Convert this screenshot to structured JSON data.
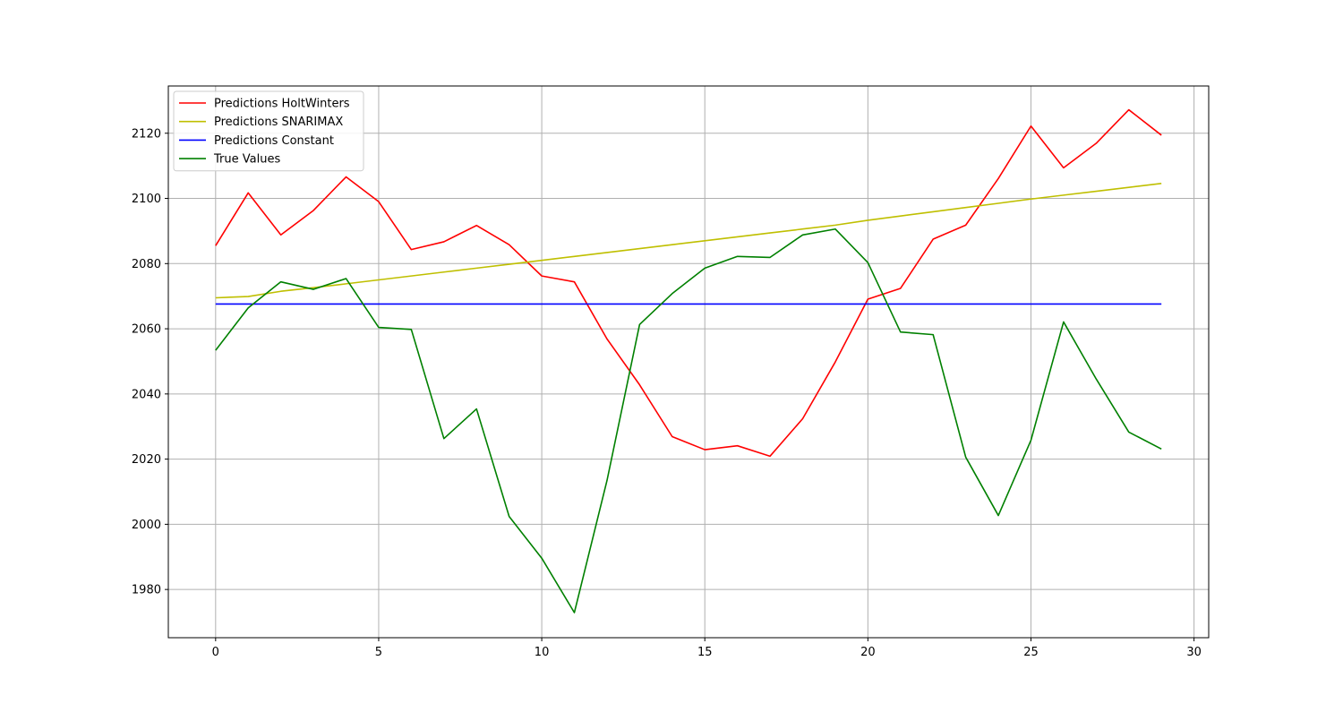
{
  "chart_data": {
    "type": "line",
    "title": "",
    "xlabel": "",
    "ylabel": "",
    "x": [
      0,
      1,
      2,
      3,
      4,
      5,
      6,
      7,
      8,
      9,
      10,
      11,
      12,
      13,
      14,
      15,
      16,
      17,
      18,
      19,
      20,
      21,
      22,
      23,
      24,
      25,
      26,
      27,
      28,
      29
    ],
    "xlim": [
      -1.45,
      30.45
    ],
    "ylim": [
      1965.2,
      2134.5
    ],
    "xticks": [
      0,
      5,
      10,
      15,
      20,
      25,
      30
    ],
    "yticks": [
      1980,
      2000,
      2020,
      2040,
      2060,
      2080,
      2100,
      2120
    ],
    "grid": true,
    "legend_position": "upper-left",
    "series": [
      {
        "name": "Predictions HoltWinters",
        "color": "#ff0000",
        "values": [
          2085.5,
          2101.7,
          2088.8,
          2096.3,
          2106.6,
          2099.0,
          2084.3,
          2086.7,
          2091.7,
          2085.8,
          2076.2,
          2074.4,
          2056.9,
          2042.8,
          2026.9,
          2022.9,
          2024.1,
          2020.9,
          2032.4,
          2049.8,
          2069.1,
          2072.4,
          2087.5,
          2091.8,
          2106.1,
          2122.2,
          2109.4,
          2116.9,
          2127.2,
          2119.4
        ]
      },
      {
        "name": "Predictions SNARIMAX",
        "color": "#bfbf00",
        "values": [
          2069.5,
          2069.9,
          2071.5,
          2072.6,
          2073.8,
          2075.0,
          2076.2,
          2077.4,
          2078.6,
          2079.8,
          2081.0,
          2082.2,
          2083.4,
          2084.6,
          2085.8,
          2087.0,
          2088.2,
          2089.4,
          2090.6,
          2091.8,
          2093.3,
          2094.6,
          2095.9,
          2097.2,
          2098.5,
          2099.8,
          2101.0,
          2102.2,
          2103.4,
          2104.6
        ]
      },
      {
        "name": "Predictions Constant",
        "color": "#0000ff",
        "values": [
          2067.6,
          2067.6,
          2067.6,
          2067.6,
          2067.6,
          2067.6,
          2067.6,
          2067.6,
          2067.6,
          2067.6,
          2067.6,
          2067.6,
          2067.6,
          2067.6,
          2067.6,
          2067.6,
          2067.6,
          2067.6,
          2067.6,
          2067.6,
          2067.6,
          2067.6,
          2067.6,
          2067.6,
          2067.6,
          2067.6,
          2067.6,
          2067.6,
          2067.6,
          2067.6
        ]
      },
      {
        "name": "True Values",
        "color": "#008000",
        "values": [
          2053.4,
          2066.4,
          2074.4,
          2072.1,
          2075.4,
          2060.4,
          2059.8,
          2026.3,
          2035.4,
          2002.4,
          1989.6,
          1972.9,
          2013.4,
          2061.3,
          2070.8,
          2078.6,
          2082.2,
          2081.9,
          2088.8,
          2090.6,
          2080.3,
          2059.0,
          2058.2,
          2020.6,
          2002.7,
          2025.8,
          2062.1,
          2044.6,
          2028.3,
          2023.1
        ]
      }
    ]
  }
}
